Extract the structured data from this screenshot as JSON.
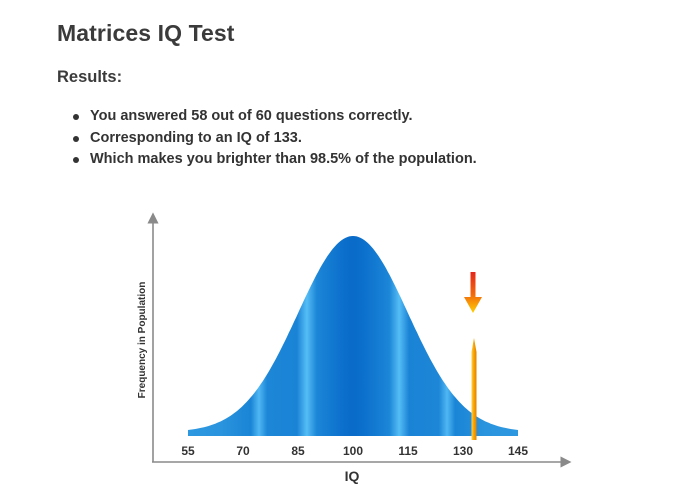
{
  "page": {
    "title": "Matrices IQ Test",
    "results_heading": "Results:",
    "results": [
      "You answered 58 out of 60 questions correctly.",
      "Corresponding to an IQ of 133.",
      "Which makes you brighter than 98.5% of the population."
    ]
  },
  "chart_data": {
    "type": "area",
    "xlabel": "IQ",
    "ylabel": "Frequency in Population",
    "x_ticks": [
      55,
      70,
      85,
      100,
      115,
      130,
      145
    ],
    "xlim": [
      55,
      145
    ],
    "distribution": {
      "mean": 100,
      "sd": 15
    },
    "marker": {
      "x": 133
    },
    "grid": false,
    "colors": {
      "curve_dark": "#0a6fcc",
      "curve_light": "#49b6f2",
      "marker_orange": "#f5a300",
      "marker_red": "#e5261a",
      "axis": "#888888"
    }
  }
}
